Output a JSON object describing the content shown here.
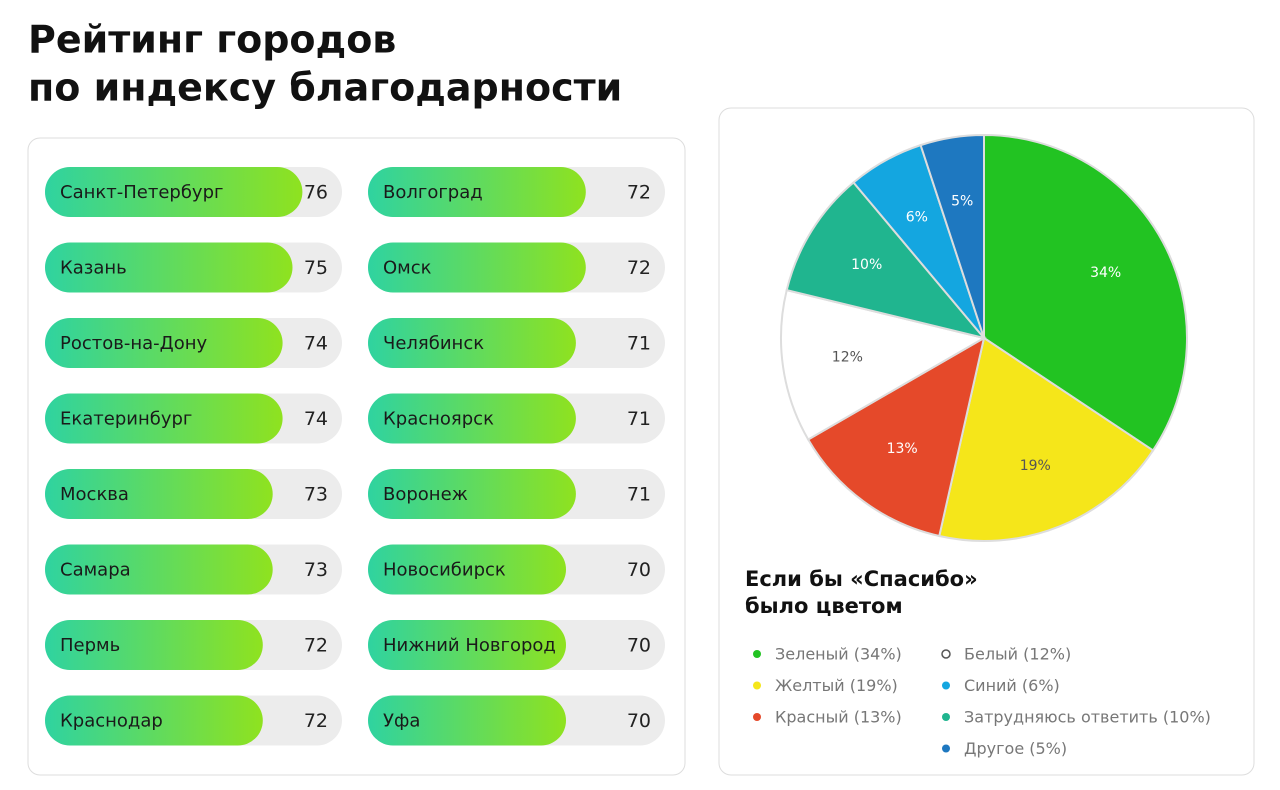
{
  "header": {
    "title": [
      "Рейтинг городов",
      "по индексу благодарности"
    ]
  },
  "chart_data": [
    {
      "type": "bar",
      "categories": [
        "Санкт-Петербург",
        "Казань",
        "Ростов-на-Дону",
        "Екатеринбург",
        "Москва",
        "Самара",
        "Пермь",
        "Краснодар",
        "Волгоград",
        "Омск",
        "Челябинск",
        "Красноярск",
        "Воронеж",
        "Новосибирск",
        "Нижний Новгород",
        "Уфа"
      ],
      "values": [
        76,
        75,
        74,
        74,
        73,
        73,
        72,
        72,
        72,
        72,
        71,
        71,
        71,
        70,
        70,
        70
      ],
      "xlim": [
        50,
        80
      ],
      "color": [
        "#2fd3a0",
        "#8fe21f"
      ]
    },
    {
      "type": "pie",
      "title": [
        "Если бы «Спасибо»",
        "было цветом"
      ],
      "categories": [
        "Зеленый (34%)",
        "Желтый (19%)",
        "Красный (13%)",
        "Белый (12%)",
        "Затрудняюсь ответить (10%)",
        "Синий (6%)",
        "Другое (5%)"
      ],
      "values": [
        34,
        19,
        13,
        12,
        10,
        6,
        5
      ],
      "value_labels": [
        "34%",
        "19%",
        "13%",
        "12%",
        "10%",
        "6%",
        "5%"
      ],
      "colors": [
        "#22c322",
        "#f5e61a",
        "#e5492a",
        "#ffffff",
        "#20b58f",
        "#14a6e0",
        "#1e78c0"
      ]
    }
  ]
}
